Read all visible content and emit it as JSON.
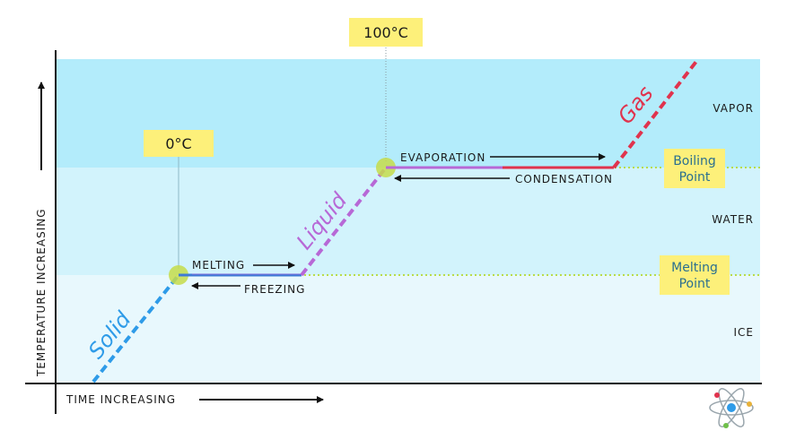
{
  "axes": {
    "y_label": "TEMPERATURE INCREASING",
    "x_label": "TIME INCREASING"
  },
  "zones": [
    {
      "label": "VAPOR",
      "color": "#b3ecfb"
    },
    {
      "label": "WATER",
      "color": "#d2f3fc"
    },
    {
      "label": "ICE",
      "color": "#e8f8fd"
    }
  ],
  "thresholds": [
    {
      "line1": "Boiling",
      "line2": "Point"
    },
    {
      "line1": "Melting",
      "line2": "Point"
    }
  ],
  "markers": {
    "freeze_temp": "0°C",
    "boil_temp": "100°C"
  },
  "phases": {
    "solid": "Solid",
    "liquid": "Liquid",
    "gas": "Gas"
  },
  "processes": {
    "melting": "MELTING",
    "freezing": "FREEZING",
    "evaporation": "EVAPORATION",
    "condensation": "CONDENSATION"
  },
  "colors": {
    "solid": "#2e9be8",
    "liquid": "#b768d6",
    "gas": "#e0334d",
    "sticky": "#fdf07a",
    "threshold_line": "#b9dc4a",
    "marker_dot": "#c6dc4a"
  }
}
